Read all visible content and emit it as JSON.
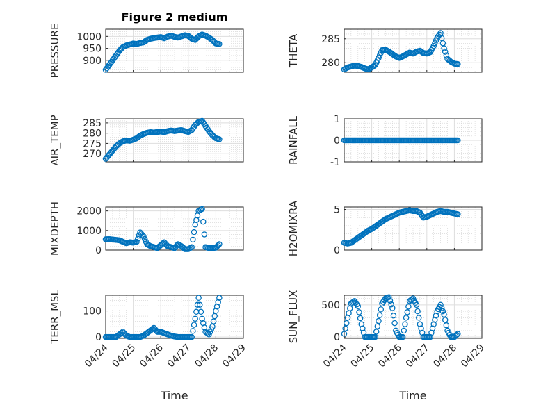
{
  "figure": {
    "title": "Figure 2 medium",
    "xlabel": "Time",
    "marker_color": "#0072BD"
  },
  "x_ticks": [
    "04/24",
    "04/25",
    "04/26",
    "04/27",
    "04/28",
    "04/29"
  ],
  "chart_data": [
    {
      "type": "scatter",
      "name": "PRESSURE",
      "ylabel": "PRESSURE",
      "ylim": [
        850,
        1030
      ],
      "yticks": [
        900,
        950,
        1000
      ],
      "x": [
        "04/24 00:00",
        "04/24 03:00",
        "04/24 06:00",
        "04/24 09:00",
        "04/24 12:00",
        "04/24 15:00",
        "04/24 18:00",
        "04/24 21:00",
        "04/25 00:00",
        "04/25 03:00",
        "04/25 06:00",
        "04/25 09:00",
        "04/25 12:00",
        "04/25 15:00",
        "04/25 18:00",
        "04/25 21:00",
        "04/26 00:00",
        "04/26 03:00",
        "04/26 06:00",
        "04/26 09:00",
        "04/26 12:00",
        "04/26 15:00",
        "04/26 18:00",
        "04/26 21:00",
        "04/27 00:00",
        "04/27 03:00",
        "04/27 06:00",
        "04/27 09:00",
        "04/27 12:00",
        "04/27 15:00",
        "04/27 18:00",
        "04/27 21:00",
        "04/28 00:00",
        "04/28 03:00"
      ],
      "y": [
        860,
        880,
        900,
        920,
        940,
        955,
        962,
        966,
        970,
        968,
        972,
        975,
        985,
        990,
        993,
        995,
        997,
        992,
        999,
        1003,
        998,
        995,
        1000,
        1005,
        1002,
        990,
        985,
        1000,
        1008,
        1003,
        995,
        985,
        970,
        968
      ]
    },
    {
      "type": "scatter",
      "name": "THETA",
      "ylabel": "THETA",
      "ylim": [
        278,
        287
      ],
      "yticks": [
        280,
        285
      ],
      "x": [
        "04/24 00:00",
        "04/24 03:00",
        "04/24 06:00",
        "04/24 09:00",
        "04/24 12:00",
        "04/24 15:00",
        "04/24 18:00",
        "04/24 21:00",
        "04/25 00:00",
        "04/25 03:00",
        "04/25 06:00",
        "04/25 09:00",
        "04/25 12:00",
        "04/25 15:00",
        "04/25 18:00",
        "04/25 21:00",
        "04/26 00:00",
        "04/26 03:00",
        "04/26 06:00",
        "04/26 09:00",
        "04/26 12:00",
        "04/26 15:00",
        "04/26 18:00",
        "04/26 21:00",
        "04/27 00:00",
        "04/27 03:00",
        "04/27 06:00",
        "04/27 09:00",
        "04/27 12:00",
        "04/27 15:00",
        "04/27 18:00",
        "04/27 21:00",
        "04/28 00:00",
        "04/28 03:00"
      ],
      "y": [
        278.6,
        279.0,
        279.2,
        279.4,
        279.3,
        279.1,
        278.8,
        278.6,
        279.0,
        279.5,
        281.0,
        282.6,
        282.7,
        282.3,
        281.8,
        281.3,
        281.0,
        281.3,
        281.7,
        282.1,
        281.9,
        282.3,
        282.5,
        282.0,
        281.9,
        282.2,
        283.5,
        285.2,
        286.2,
        283.0,
        280.8,
        280.2,
        279.8,
        279.7
      ]
    },
    {
      "type": "scatter",
      "name": "AIR_TEMP",
      "ylabel": "AIR_TEMP",
      "ylim": [
        266,
        287
      ],
      "yticks": [
        270,
        275,
        280,
        285
      ],
      "x": [
        "04/24 00:00",
        "04/24 03:00",
        "04/24 06:00",
        "04/24 09:00",
        "04/24 12:00",
        "04/24 15:00",
        "04/24 18:00",
        "04/24 21:00",
        "04/25 00:00",
        "04/25 03:00",
        "04/25 06:00",
        "04/25 09:00",
        "04/25 12:00",
        "04/25 15:00",
        "04/25 18:00",
        "04/25 21:00",
        "04/26 00:00",
        "04/26 03:00",
        "04/26 06:00",
        "04/26 09:00",
        "04/26 12:00",
        "04/26 15:00",
        "04/26 18:00",
        "04/26 21:00",
        "04/27 00:00",
        "04/27 03:00",
        "04/27 06:00",
        "04/27 09:00",
        "04/27 12:00",
        "04/27 15:00",
        "04/27 18:00",
        "04/27 21:00",
        "04/28 00:00",
        "04/28 03:00"
      ],
      "y": [
        267.5,
        269.5,
        271.5,
        273.5,
        275.0,
        276.0,
        276.5,
        276.3,
        276.8,
        277.5,
        278.8,
        279.6,
        280.2,
        280.5,
        280.3,
        280.6,
        280.8,
        280.5,
        281.0,
        281.3,
        281.0,
        281.3,
        281.5,
        281.0,
        280.6,
        281.5,
        284.0,
        285.5,
        286.0,
        283.5,
        281.0,
        279.0,
        277.5,
        277.0
      ]
    },
    {
      "type": "scatter",
      "name": "RAINFALL",
      "ylabel": "RAINFALL",
      "ylim": [
        -1,
        1
      ],
      "yticks": [
        -1,
        0,
        1
      ],
      "x": [
        "04/24 00:00",
        "04/24 03:00",
        "04/24 06:00",
        "04/24 09:00",
        "04/24 12:00",
        "04/24 15:00",
        "04/24 18:00",
        "04/24 21:00",
        "04/25 00:00",
        "04/25 03:00",
        "04/25 06:00",
        "04/25 09:00",
        "04/25 12:00",
        "04/25 15:00",
        "04/25 18:00",
        "04/25 21:00",
        "04/26 00:00",
        "04/26 03:00",
        "04/26 06:00",
        "04/26 09:00",
        "04/26 12:00",
        "04/26 15:00",
        "04/26 18:00",
        "04/26 21:00",
        "04/27 00:00",
        "04/27 03:00",
        "04/27 06:00",
        "04/27 09:00",
        "04/27 12:00",
        "04/27 15:00",
        "04/27 18:00",
        "04/27 21:00",
        "04/28 00:00",
        "04/28 03:00"
      ],
      "y": [
        0,
        0,
        0,
        0,
        0,
        0,
        0,
        0,
        0,
        0,
        0,
        0,
        0,
        0,
        0,
        0,
        0,
        0,
        0,
        0,
        0,
        0,
        0,
        0,
        0,
        0,
        0,
        0,
        0,
        0,
        0,
        0,
        0,
        0
      ]
    },
    {
      "type": "scatter",
      "name": "MIXDEPTH",
      "ylabel": "MIXDEPTH",
      "ylim": [
        0,
        2200
      ],
      "yticks": [
        0,
        1000,
        2000
      ],
      "x": [
        "04/24 00:00",
        "04/24 03:00",
        "04/24 06:00",
        "04/24 09:00",
        "04/24 12:00",
        "04/24 15:00",
        "04/24 18:00",
        "04/24 21:00",
        "04/25 00:00",
        "04/25 03:00",
        "04/25 06:00",
        "04/25 09:00",
        "04/25 12:00",
        "04/25 15:00",
        "04/25 18:00",
        "04/25 21:00",
        "04/26 00:00",
        "04/26 03:00",
        "04/26 06:00",
        "04/26 09:00",
        "04/26 12:00",
        "04/26 15:00",
        "04/26 18:00",
        "04/26 21:00",
        "04/27 00:00",
        "04/27 03:00",
        "04/27 06:00",
        "04/27 09:00",
        "04/27 12:00",
        "04/27 15:00",
        "04/27 18:00",
        "04/27 21:00",
        "04/28 00:00",
        "04/28 03:00"
      ],
      "y": [
        550,
        560,
        540,
        520,
        500,
        420,
        350,
        400,
        380,
        420,
        900,
        700,
        300,
        200,
        150,
        100,
        250,
        400,
        200,
        150,
        100,
        300,
        200,
        50,
        50,
        150,
        1300,
        2000,
        2100,
        150,
        100,
        100,
        120,
        300
      ]
    },
    {
      "type": "scatter",
      "name": "H2OMIXRA",
      "ylabel": "H2OMIXRA",
      "ylim": [
        0,
        5.3
      ],
      "yticks": [
        0,
        5
      ],
      "x": [
        "04/24 00:00",
        "04/24 03:00",
        "04/24 06:00",
        "04/24 09:00",
        "04/24 12:00",
        "04/24 15:00",
        "04/24 18:00",
        "04/24 21:00",
        "04/25 00:00",
        "04/25 03:00",
        "04/25 06:00",
        "04/25 09:00",
        "04/25 12:00",
        "04/25 15:00",
        "04/25 18:00",
        "04/25 21:00",
        "04/26 00:00",
        "04/26 03:00",
        "04/26 06:00",
        "04/26 09:00",
        "04/26 12:00",
        "04/26 15:00",
        "04/26 18:00",
        "04/26 21:00",
        "04/27 00:00",
        "04/27 03:00",
        "04/27 06:00",
        "04/27 09:00",
        "04/27 12:00",
        "04/27 15:00",
        "04/27 18:00",
        "04/27 21:00",
        "04/28 00:00",
        "04/28 03:00"
      ],
      "y": [
        0.9,
        0.8,
        0.9,
        1.2,
        1.5,
        1.8,
        2.1,
        2.4,
        2.6,
        2.9,
        3.2,
        3.5,
        3.8,
        4.0,
        4.2,
        4.4,
        4.6,
        4.7,
        4.8,
        4.9,
        4.8,
        4.8,
        4.6,
        4.0,
        4.1,
        4.3,
        4.5,
        4.7,
        4.8,
        4.7,
        4.7,
        4.6,
        4.5,
        4.4
      ]
    },
    {
      "type": "scatter",
      "name": "TERR_MSL",
      "ylabel": "TERR_MSL",
      "ylim": [
        -5,
        160
      ],
      "yticks": [
        0,
        100
      ],
      "x": [
        "04/24 00:00",
        "04/24 03:00",
        "04/24 06:00",
        "04/24 09:00",
        "04/24 12:00",
        "04/24 15:00",
        "04/24 18:00",
        "04/24 21:00",
        "04/25 00:00",
        "04/25 03:00",
        "04/25 06:00",
        "04/25 09:00",
        "04/25 12:00",
        "04/25 15:00",
        "04/25 18:00",
        "04/25 21:00",
        "04/26 00:00",
        "04/26 03:00",
        "04/26 06:00",
        "04/26 09:00",
        "04/26 12:00",
        "04/26 15:00",
        "04/26 18:00",
        "04/26 21:00",
        "04/27 00:00",
        "04/27 03:00",
        "04/27 06:00",
        "04/27 09:00",
        "04/27 12:00",
        "04/27 15:00",
        "04/27 18:00",
        "04/27 21:00",
        "04/28 00:00",
        "04/28 03:00"
      ],
      "y": [
        0,
        0,
        0,
        0,
        10,
        20,
        5,
        0,
        0,
        0,
        0,
        5,
        15,
        25,
        35,
        20,
        20,
        15,
        10,
        5,
        2,
        0,
        0,
        0,
        0,
        0,
        70,
        150,
        70,
        20,
        10,
        40,
        100,
        150
      ]
    },
    {
      "type": "scatter",
      "name": "SUN_FLUX",
      "ylabel": "SUN_FLUX",
      "ylim": [
        -20,
        650
      ],
      "yticks": [
        0,
        500
      ],
      "x": [
        "04/24 00:00",
        "04/24 03:00",
        "04/24 06:00",
        "04/24 09:00",
        "04/24 12:00",
        "04/24 15:00",
        "04/24 18:00",
        "04/24 21:00",
        "04/25 00:00",
        "04/25 03:00",
        "04/25 06:00",
        "04/25 09:00",
        "04/25 12:00",
        "04/25 15:00",
        "04/25 18:00",
        "04/25 21:00",
        "04/26 00:00",
        "04/26 03:00",
        "04/26 06:00",
        "04/26 09:00",
        "04/26 12:00",
        "04/26 15:00",
        "04/26 18:00",
        "04/26 21:00",
        "04/27 00:00",
        "04/27 03:00",
        "04/27 06:00",
        "04/27 09:00",
        "04/27 12:00",
        "04/27 15:00",
        "04/27 18:00",
        "04/27 21:00",
        "04/28 00:00",
        "04/28 03:00"
      ],
      "y": [
        50,
        300,
        520,
        560,
        480,
        200,
        0,
        0,
        0,
        0,
        250,
        520,
        600,
        620,
        450,
        100,
        0,
        0,
        300,
        560,
        600,
        500,
        200,
        0,
        0,
        0,
        200,
        400,
        500,
        350,
        100,
        0,
        0,
        50
      ]
    }
  ]
}
